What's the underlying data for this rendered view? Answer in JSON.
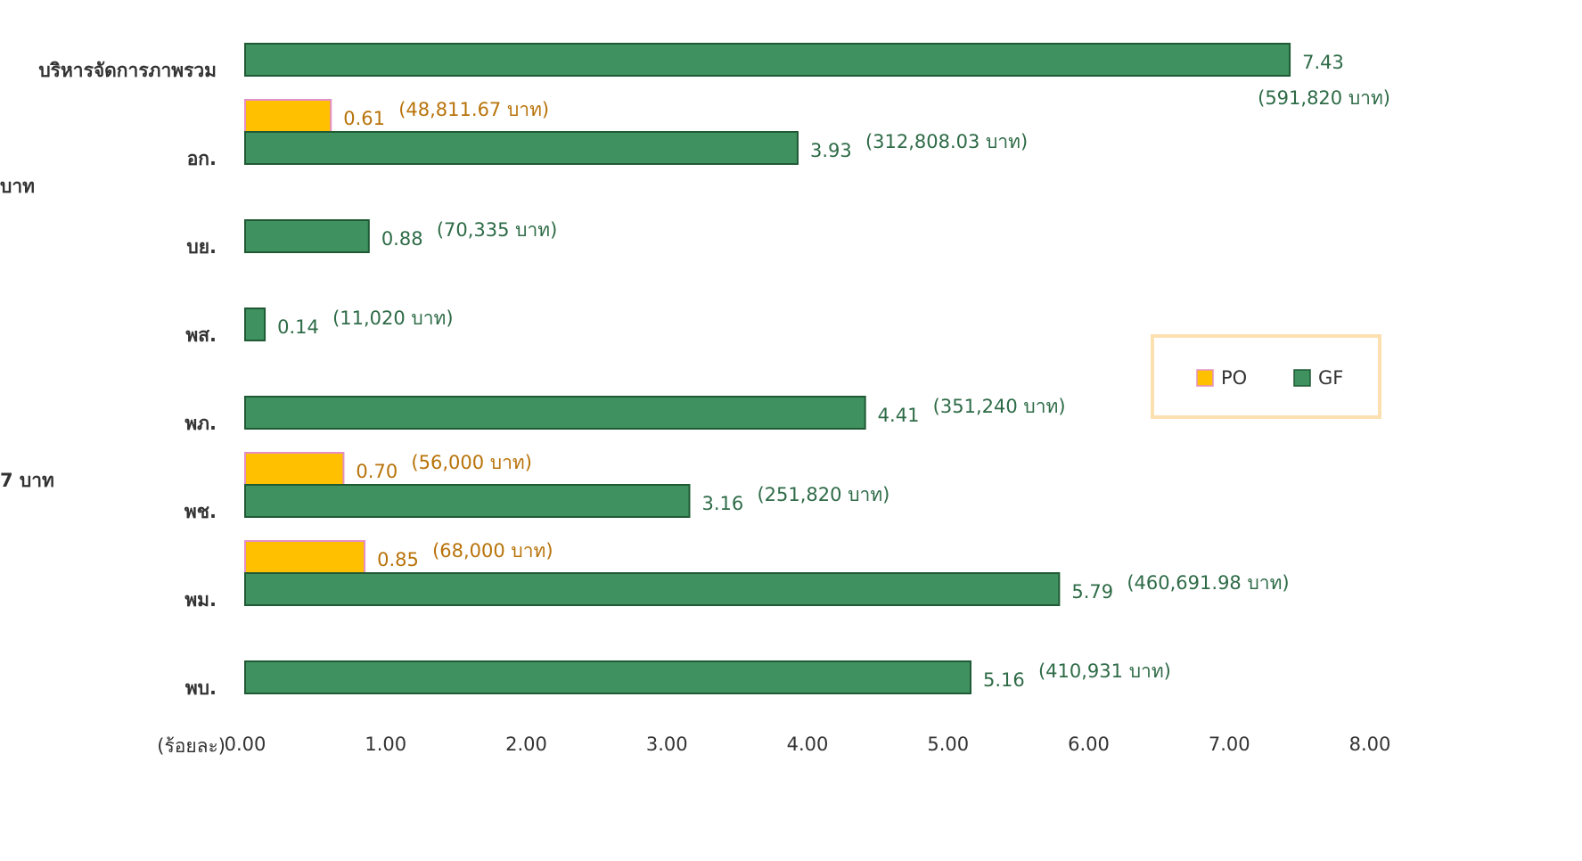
{
  "chart_data": {
    "type": "bar",
    "orientation": "horizontal",
    "categories": [
      "บริหารจัดการภาพรวม",
      "อก.",
      "บย.",
      "พส.",
      "พภ.",
      "พช.",
      "พม.",
      "พบ."
    ],
    "series": [
      {
        "name": "PO",
        "color": "#ffc000",
        "values": [
          null,
          0.61,
          null,
          null,
          null,
          0.7,
          0.85,
          null
        ],
        "value_labels": [
          null,
          "0.61",
          null,
          null,
          null,
          "0.70",
          "0.85",
          null
        ],
        "notes": [
          null,
          "(48,811.67 บาท)",
          null,
          null,
          null,
          "(56,000 บาท)",
          "(68,000 บาท)",
          null
        ]
      },
      {
        "name": "GF",
        "color": "#3f9160",
        "values": [
          7.43,
          3.93,
          0.88,
          0.14,
          4.41,
          3.16,
          5.79,
          5.16
        ],
        "notes": [
          "(591,820 บาท)",
          "(312,808.03 บาท)",
          "(70,335 บาท)",
          "(11,020 บาท)",
          "(351,240 บาท)",
          "(251,820 บาท)",
          "(460,691.98  บาท)",
          "(410,931 บาท)"
        ]
      }
    ],
    "xlabel": "(ร้อยละ)",
    "xlim": [
      0,
      8
    ],
    "xticks": [
      {
        "value": 0,
        "label": "0.00"
      },
      {
        "value": 1,
        "label": "1.00"
      },
      {
        "value": 2,
        "label": "2.00"
      },
      {
        "value": 3,
        "label": "3.00"
      },
      {
        "value": 4,
        "label": "4.00"
      },
      {
        "value": 5,
        "label": "5.00"
      },
      {
        "value": 6,
        "label": "6.00"
      },
      {
        "value": 7,
        "label": "7.00"
      },
      {
        "value": 8,
        "label": "8.00"
      }
    ],
    "side_texts": [
      "บาท",
      "7 บาท"
    ],
    "legend": "right"
  }
}
